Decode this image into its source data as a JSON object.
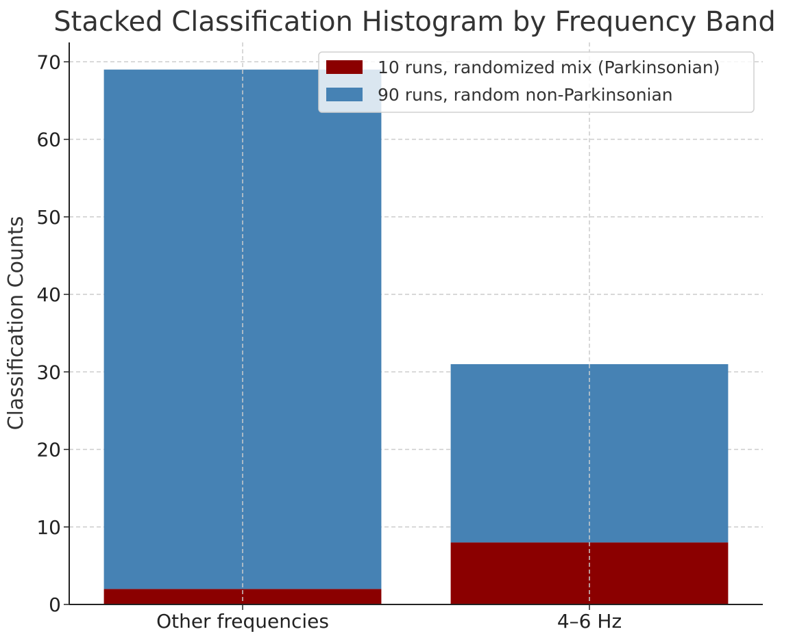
{
  "chart_data": {
    "type": "bar",
    "stacked": true,
    "title": "Stacked Classification Histogram by Frequency Band",
    "xlabel": "",
    "ylabel": "Classification Counts",
    "categories": [
      "Other frequencies",
      "4–6 Hz"
    ],
    "series": [
      {
        "name": "10 runs, randomized mix (Parkinsonian)",
        "values": [
          2,
          8
        ],
        "color": "#8b0000"
      },
      {
        "name": "90 runs, random non-Parkinsonian",
        "values": [
          67,
          23
        ],
        "color": "#4682b4"
      }
    ],
    "ylim": [
      0,
      72.5
    ],
    "yticks": [
      0,
      10,
      20,
      30,
      40,
      50,
      60,
      70
    ],
    "grid": true,
    "legend_position": "top-right"
  }
}
